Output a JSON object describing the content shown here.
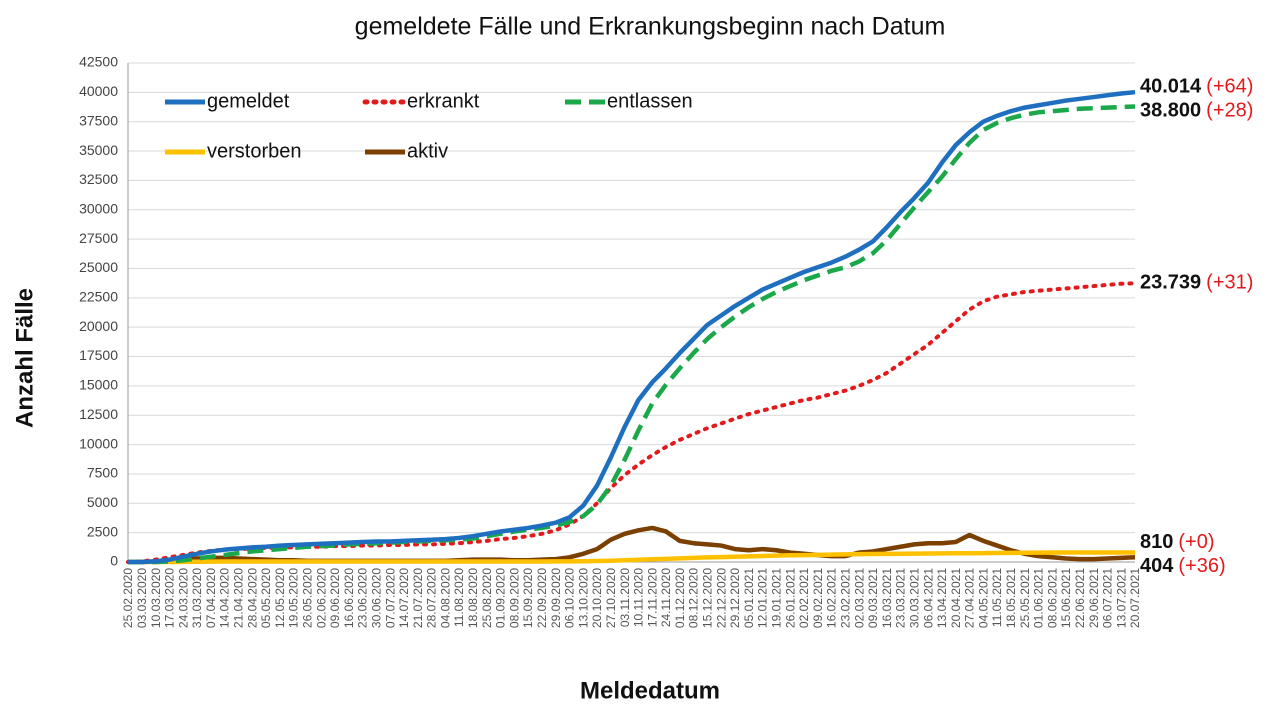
{
  "chart_data": {
    "type": "line",
    "title": "gemeldete Fälle und Erkrankungsbeginn nach Datum",
    "x_label": "Meldedatum",
    "y_label": "Anzahl Fälle",
    "categories": [
      "25.02.2020",
      "03.03.2020",
      "10.03.2020",
      "17.03.2020",
      "24.03.2020",
      "31.03.2020",
      "07.04.2020",
      "14.04.2020",
      "21.04.2020",
      "28.04.2020",
      "05.05.2020",
      "12.05.2020",
      "19.05.2020",
      "26.05.2020",
      "02.06.2020",
      "09.06.2020",
      "16.06.2020",
      "23.06.2020",
      "30.06.2020",
      "07.07.2020",
      "14.07.2020",
      "21.07.2020",
      "28.07.2020",
      "04.08.2020",
      "11.08.2020",
      "18.08.2020",
      "25.08.2020",
      "01.09.2020",
      "08.09.2020",
      "15.09.2020",
      "22.09.2020",
      "29.09.2020",
      "06.10.2020",
      "13.10.2020",
      "20.10.2020",
      "27.10.2020",
      "03.11.2020",
      "10.11.2020",
      "17.11.2020",
      "24.11.2020",
      "01.12.2020",
      "08.12.2020",
      "15.12.2020",
      "22.12.2020",
      "29.12.2020",
      "05.01.2021",
      "12.01.2021",
      "19.01.2021",
      "26.01.2021",
      "02.02.2021",
      "09.02.2021",
      "16.02.2021",
      "23.02.2021",
      "02.03.2021",
      "09.03.2021",
      "16.03.2021",
      "23.03.2021",
      "30.03.2021",
      "06.04.2021",
      "13.04.2021",
      "20.04.2021",
      "27.04.2021",
      "04.05.2021",
      "11.05.2021",
      "18.05.2021",
      "25.05.2021",
      "01.06.2021",
      "08.06.2021",
      "15.06.2021",
      "22.06.2021",
      "29.06.2021",
      "06.07.2021",
      "13.07.2021",
      "20.07.2021"
    ],
    "series": [
      {
        "name": "gemeldet",
        "color": "#1f6fc0",
        "style": "solid",
        "end_label": "40.014",
        "change": "(+64)",
        "values": [
          0,
          0,
          50,
          200,
          450,
          700,
          900,
          1050,
          1150,
          1250,
          1300,
          1400,
          1450,
          1500,
          1550,
          1600,
          1650,
          1700,
          1750,
          1750,
          1800,
          1850,
          1900,
          1950,
          2050,
          2200,
          2400,
          2600,
          2750,
          2900,
          3100,
          3350,
          3800,
          4800,
          6500,
          8900,
          11500,
          13800,
          15300,
          16500,
          17800,
          19000,
          20200,
          21000,
          21800,
          22500,
          23200,
          23700,
          24200,
          24700,
          25100,
          25500,
          26000,
          26600,
          27300,
          28500,
          29800,
          31000,
          32300,
          34000,
          35500,
          36600,
          37500,
          38000,
          38400,
          38700,
          38900,
          39100,
          39300,
          39450,
          39600,
          39750,
          39900,
          40014
        ]
      },
      {
        "name": "erkrankt",
        "color": "#e31a1c",
        "style": "dotted",
        "end_label": "23.739",
        "change": "(+31)",
        "values": [
          0,
          50,
          200,
          400,
          600,
          800,
          950,
          1050,
          1100,
          1150,
          1200,
          1250,
          1250,
          1300,
          1300,
          1350,
          1350,
          1400,
          1400,
          1450,
          1450,
          1500,
          1500,
          1550,
          1600,
          1700,
          1800,
          1950,
          2050,
          2200,
          2400,
          2700,
          3200,
          3900,
          5000,
          6300,
          7400,
          8300,
          9100,
          9800,
          10400,
          10900,
          11400,
          11800,
          12200,
          12600,
          12900,
          13200,
          13500,
          13800,
          14000,
          14300,
          14600,
          15000,
          15500,
          16100,
          16900,
          17700,
          18500,
          19500,
          20500,
          21500,
          22200,
          22600,
          22800,
          23000,
          23100,
          23200,
          23300,
          23400,
          23500,
          23600,
          23700,
          23739
        ]
      },
      {
        "name": "entlassen",
        "color": "#1aa84a",
        "style": "dashed",
        "end_label": "38.800",
        "change": "(+28)",
        "values": [
          0,
          0,
          0,
          50,
          150,
          300,
          450,
          600,
          750,
          900,
          1000,
          1100,
          1200,
          1300,
          1350,
          1400,
          1500,
          1550,
          1600,
          1650,
          1700,
          1750,
          1800,
          1850,
          1900,
          2000,
          2200,
          2400,
          2600,
          2750,
          2900,
          3100,
          3400,
          3900,
          4900,
          6500,
          8700,
          11200,
          13500,
          15100,
          16500,
          17800,
          19000,
          20000,
          20900,
          21700,
          22400,
          23000,
          23500,
          24000,
          24400,
          24800,
          25100,
          25600,
          26300,
          27400,
          28800,
          30200,
          31500,
          32800,
          34300,
          35700,
          36800,
          37400,
          37800,
          38100,
          38300,
          38400,
          38500,
          38600,
          38650,
          38700,
          38750,
          38800
        ]
      },
      {
        "name": "verstorben",
        "color": "#ffc000",
        "style": "solid",
        "end_label": "810",
        "change": "(+0)",
        "values": [
          0,
          0,
          0,
          5,
          15,
          25,
          35,
          40,
          45,
          45,
          45,
          45,
          45,
          45,
          45,
          45,
          45,
          45,
          45,
          45,
          45,
          45,
          45,
          45,
          45,
          45,
          45,
          45,
          45,
          45,
          45,
          48,
          50,
          60,
          80,
          110,
          150,
          190,
          230,
          270,
          310,
          350,
          390,
          420,
          450,
          480,
          510,
          540,
          570,
          590,
          610,
          630,
          650,
          670,
          680,
          690,
          700,
          710,
          720,
          730,
          740,
          750,
          760,
          770,
          780,
          790,
          800,
          805,
          807,
          808,
          809,
          809,
          810,
          810
        ]
      },
      {
        "name": "aktiv",
        "color": "#7b3f00",
        "style": "solid",
        "end_label": "404",
        "change": "(+36)",
        "values": [
          0,
          0,
          50,
          150,
          250,
          300,
          350,
          350,
          300,
          250,
          200,
          150,
          150,
          100,
          100,
          100,
          100,
          100,
          100,
          100,
          100,
          100,
          100,
          100,
          150,
          200,
          200,
          200,
          150,
          150,
          200,
          250,
          400,
          700,
          1100,
          1900,
          2400,
          2700,
          2900,
          2600,
          1800,
          1600,
          1500,
          1400,
          1100,
          1000,
          1100,
          1000,
          800,
          700,
          600,
          500,
          500,
          800,
          900,
          1100,
          1300,
          1500,
          1600,
          1600,
          1700,
          2300,
          1800,
          1400,
          1000,
          700,
          500,
          400,
          300,
          250,
          250,
          300,
          350,
          404
        ]
      }
    ],
    "ylim": [
      0,
      42500
    ],
    "yticks": [
      0,
      2500,
      5000,
      7500,
      10000,
      12500,
      15000,
      17500,
      20000,
      22500,
      25000,
      27500,
      30000,
      32500,
      35000,
      37500,
      40000,
      42500
    ],
    "grid": true,
    "legend": "top-left"
  }
}
